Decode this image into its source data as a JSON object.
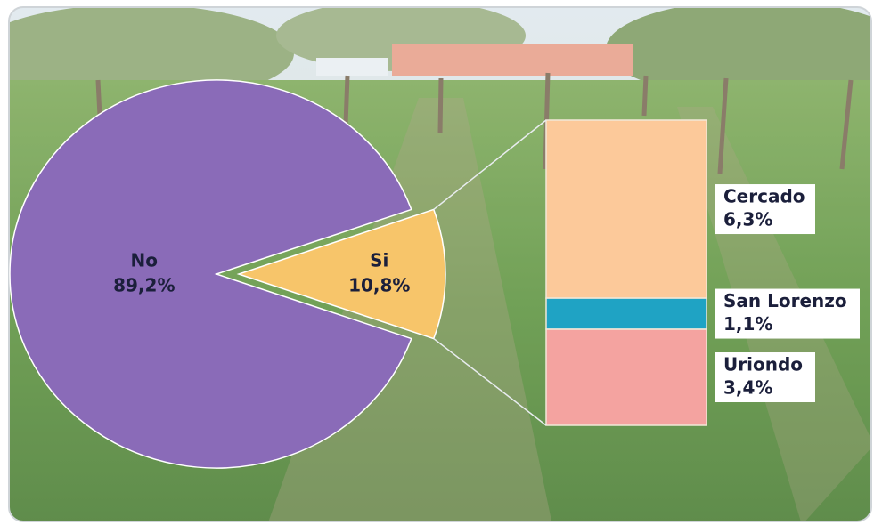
{
  "chart_data": [
    {
      "type": "pie",
      "categories": [
        "No",
        "Si"
      ],
      "values": [
        89.2,
        10.8
      ],
      "value_labels": [
        "89,2%",
        "10,8%"
      ],
      "colors": [
        "#8a6bb8",
        "#f7c56a"
      ]
    },
    {
      "type": "stacked-bar",
      "categories": [
        "Cercado",
        "San Lorenzo",
        "Uriondo"
      ],
      "values": [
        6.3,
        1.1,
        3.4
      ],
      "value_labels": [
        "6,3%",
        "1,1%",
        "3,4%"
      ],
      "colors": [
        "#fcc99a",
        "#1fa3c4",
        "#f4a3a0"
      ]
    }
  ]
}
